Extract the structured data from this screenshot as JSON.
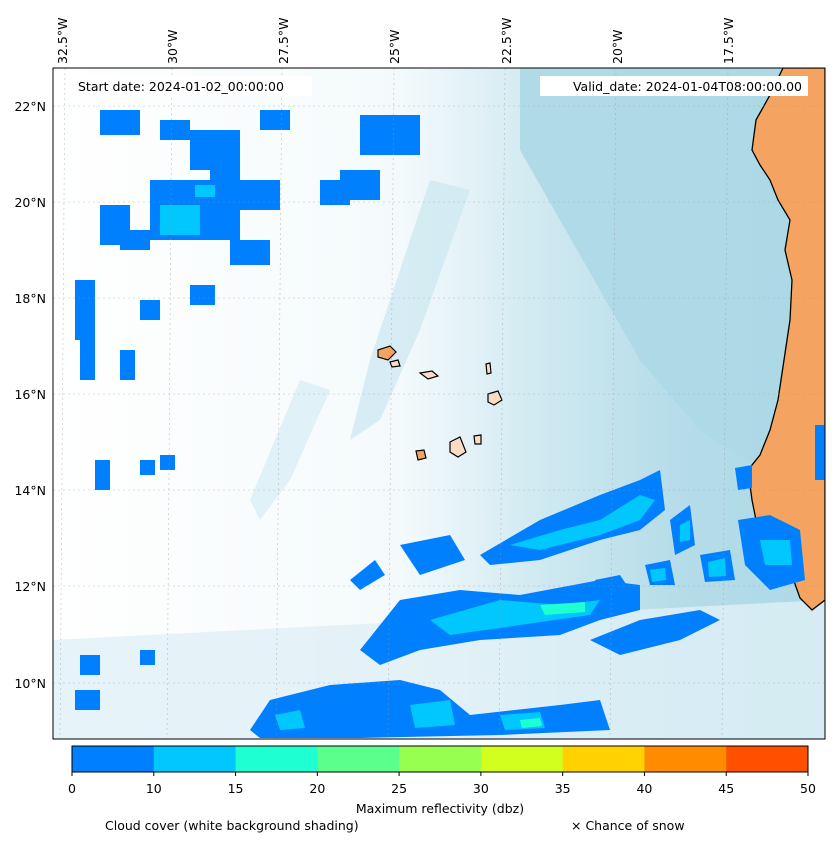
{
  "map": {
    "start_date": "Start date: 2024-01-02_00:00:00",
    "valid_date": "Valid_date: 2024-01-04T08:00:00.00",
    "lon_labels": [
      "32.5°W",
      "30°W",
      "27.5°W",
      "25°W",
      "22.5°W",
      "20°W",
      "17.5°W"
    ],
    "lat_labels": [
      "22°N",
      "20°N",
      "18°N",
      "16°N",
      "14°N",
      "12°N",
      "10°N"
    ],
    "extent": {
      "lon_min": -32.7,
      "lon_max": -15.5,
      "lat_min": 9.0,
      "lat_max": 22.8
    }
  },
  "colorbar": {
    "ticks": [
      "0",
      "10",
      "15",
      "20",
      "25",
      "30",
      "35",
      "40",
      "45",
      "50"
    ],
    "colors": [
      "#0080ff",
      "#00c8ff",
      "#1effd2",
      "#5aff8c",
      "#96ff50",
      "#d2ff1e",
      "#ffd200",
      "#ff8c00",
      "#ff5000"
    ],
    "label": "Maximum reflectivity (dbz)"
  },
  "captions": {
    "cloud": "Cloud cover (white background shading)",
    "snow": "× Chance of snow"
  },
  "colors": {
    "land": "#f4a460",
    "ocean_cloudfree": "#add8e6",
    "reflectivity_low": "#0080ff",
    "reflectivity_mid": "#00c8ff",
    "reflectivity_high": "#1effd2"
  }
}
